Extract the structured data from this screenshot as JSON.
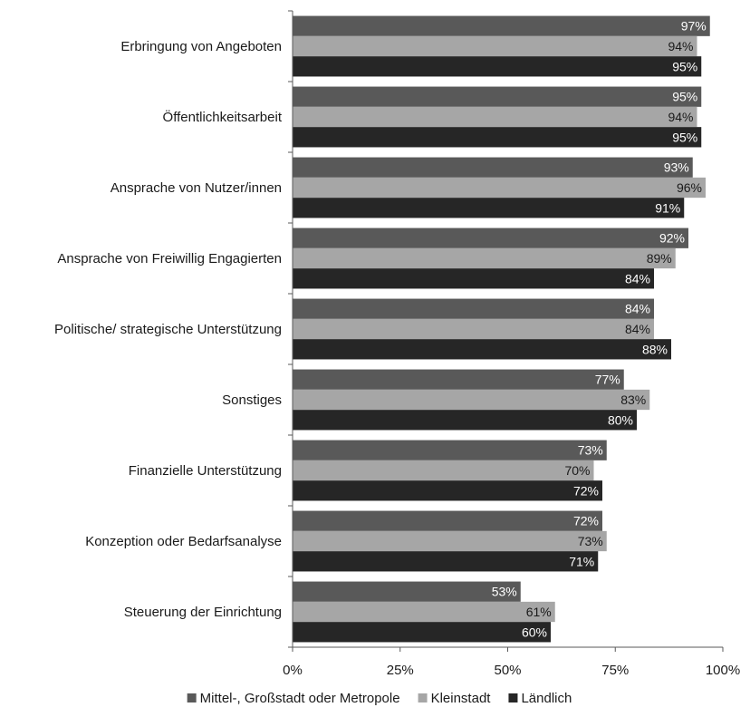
{
  "chart_data": {
    "type": "bar",
    "orientation": "horizontal",
    "title": "",
    "xlabel": "",
    "ylabel": "",
    "xlim": [
      0,
      100
    ],
    "x_ticks": [
      "0%",
      "25%",
      "50%",
      "75%",
      "100%"
    ],
    "x_tick_values": [
      0,
      25,
      50,
      75,
      100
    ],
    "grid": false,
    "legend_position": "bottom",
    "categories": [
      "Erbringung von Angeboten",
      "Öffentlichkeitsarbeit",
      "Ansprache von Nutzer/innen",
      "Ansprache von Freiwillig Engagierten",
      "Politische/ strategische Unterstützung",
      "Sonstiges",
      "Finanzielle Unterstützung",
      "Konzeption oder Bedarfsanalyse",
      "Steuerung der Einrichtung"
    ],
    "series": [
      {
        "name": "Mittel-, Großstadt oder Metropole",
        "color": "#595959",
        "label_color": "#ffffff",
        "values": [
          97,
          95,
          93,
          92,
          84,
          77,
          73,
          72,
          53
        ],
        "labels": [
          "97%",
          "95%",
          "93%",
          "92%",
          "84%",
          "77%",
          "73%",
          "72%",
          "53%"
        ]
      },
      {
        "name": "Kleinstadt",
        "color": "#a6a6a6",
        "label_color": "#1a1a1a",
        "values": [
          94,
          94,
          96,
          89,
          84,
          83,
          70,
          73,
          61
        ],
        "labels": [
          "94%",
          "94%",
          "96%",
          "89%",
          "84%",
          "83%",
          "70%",
          "73%",
          "61%"
        ]
      },
      {
        "name": "Ländlich",
        "color": "#262626",
        "label_color": "#ffffff",
        "values": [
          95,
          95,
          91,
          84,
          88,
          80,
          72,
          71,
          60
        ],
        "labels": [
          "95%",
          "95%",
          "91%",
          "84%",
          "88%",
          "80%",
          "72%",
          "71%",
          "60%"
        ]
      }
    ]
  }
}
